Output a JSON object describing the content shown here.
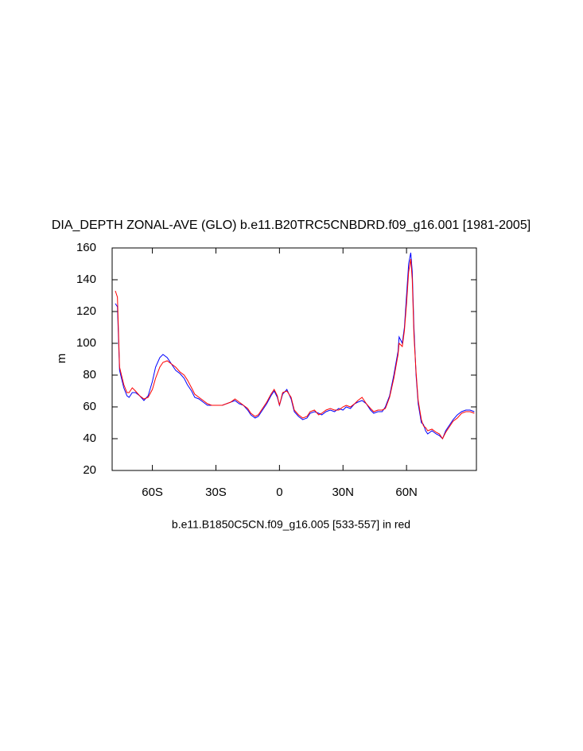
{
  "chart_data": {
    "type": "line",
    "title": "DIA_DEPTH ZONAL-AVE (GLO) b.e11.B20TRC5CNBDRD.f09_g16.001 [1981-2005]",
    "y_label": "m",
    "caption": "b.e11.B1850C5CN.f09_g16.005 [533-557] in red",
    "x": [
      -77.5,
      -76.5,
      -75.5,
      -73.5,
      -72,
      -71,
      -69.5,
      -68,
      -66,
      -64,
      -62,
      -60,
      -58.5,
      -56.5,
      -55,
      -53,
      -51,
      -49,
      -47,
      -45,
      -43.5,
      -41.5,
      -40,
      -38,
      -36,
      -34,
      -32,
      -30,
      -27,
      -23,
      -21,
      -19,
      -17,
      -15,
      -13.5,
      -11.5,
      -10,
      -8,
      -6,
      -4,
      -2.5,
      -1,
      0,
      1.5,
      3.5,
      5.5,
      7,
      9,
      11,
      13,
      14.5,
      16.5,
      18.5,
      20,
      22,
      24,
      26,
      28,
      30,
      31.5,
      33.5,
      35.5,
      37,
      39,
      41,
      43,
      44.5,
      46.5,
      48.5,
      50,
      52,
      54,
      56,
      56.5,
      58,
      59,
      60,
      61,
      62,
      62.7,
      63.5,
      64.5,
      65.5,
      67,
      68,
      69,
      70,
      72,
      73,
      74,
      75.5,
      77,
      78.5,
      80.5,
      82,
      84,
      86,
      88,
      90,
      92
    ],
    "series": [
      {
        "color": "#0000ff",
        "values": [
          125,
          123,
          83,
          72,
          67,
          66,
          69,
          69,
          67,
          64,
          67,
          76,
          85,
          91,
          93,
          91,
          87,
          83,
          81,
          78,
          74,
          70,
          66,
          65,
          63,
          61,
          61,
          61,
          61,
          63,
          64,
          62,
          61,
          58,
          55,
          53,
          54,
          58,
          62,
          67,
          70,
          66,
          61,
          68,
          71,
          65,
          57,
          54,
          52,
          53,
          56,
          57,
          56,
          55,
          57,
          58,
          57,
          59,
          58,
          60,
          59,
          62,
          63,
          64,
          62,
          58,
          56,
          57,
          57,
          60,
          67,
          80,
          95,
          104,
          100,
          110,
          130,
          150,
          157,
          145,
          110,
          80,
          62,
          50,
          49,
          45,
          43,
          45,
          44,
          43,
          42,
          40,
          45,
          49,
          52,
          55,
          57,
          58,
          58,
          57
        ]
      },
      {
        "color": "#ff0000",
        "values": [
          133,
          129,
          85,
          74,
          69,
          69,
          72,
          70,
          67,
          65,
          66,
          71,
          78,
          85,
          88,
          89,
          87,
          85,
          82,
          80,
          77,
          72,
          68,
          66,
          64,
          62,
          61,
          61,
          61,
          63,
          65,
          63,
          61,
          59,
          56,
          54,
          55,
          59,
          63,
          68,
          71,
          67,
          61,
          69,
          70,
          66,
          58,
          55,
          53,
          54,
          57,
          58,
          55,
          56,
          58,
          59,
          58,
          58,
          60,
          61,
          60,
          62,
          64,
          66,
          62,
          59,
          57,
          58,
          58,
          59,
          66,
          78,
          93,
          100,
          98,
          108,
          125,
          145,
          153,
          140,
          105,
          82,
          64,
          52,
          48,
          47,
          45,
          46,
          45,
          44,
          43,
          40,
          44,
          48,
          51,
          53,
          56,
          57,
          57,
          56
        ]
      }
    ],
    "xlim": [
      -79,
      93
    ],
    "xticks": [
      {
        "value": -60,
        "label": "60S"
      },
      {
        "value": -30,
        "label": "30S"
      },
      0,
      {
        "value": 30,
        "label": "30N"
      },
      {
        "value": 60,
        "label": "60N"
      }
    ],
    "ylim": [
      20,
      160
    ],
    "yticks": [
      20,
      40,
      60,
      80,
      100,
      120,
      140,
      160
    ],
    "grid": false
  }
}
